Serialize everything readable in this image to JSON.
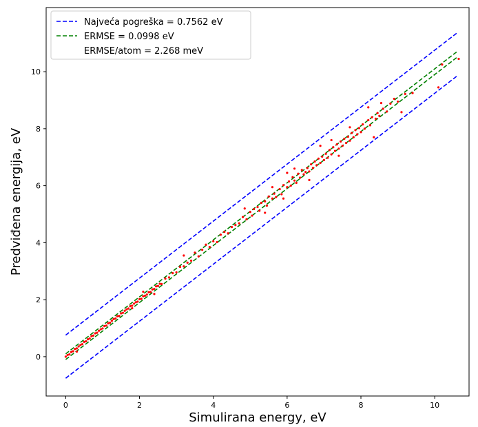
{
  "chart_data": {
    "type": "scatter",
    "title": "",
    "xlabel": "Simulirana energy, eV",
    "ylabel": "Predviđena energija, eV",
    "xlim": [
      -0.53,
      10.93
    ],
    "ylim": [
      -1.38,
      12.25
    ],
    "xticks": [
      0,
      2,
      4,
      6,
      8,
      10
    ],
    "yticks": [
      0,
      2,
      4,
      6,
      8,
      10
    ],
    "grid": false,
    "legend_position": "top-left",
    "lines": [
      {
        "name": "Najveća pogreška = 0.7562 eV",
        "color": "#0000ff",
        "dash": "dashed",
        "x": [
          0,
          10.6
        ],
        "y": [
          0.7562,
          11.3562
        ]
      },
      {
        "name": "ERMSE = 0.0998 eV",
        "color": "#008000",
        "dash": "dashed",
        "x": [
          0,
          10.6
        ],
        "y": [
          0.0998,
          10.6998
        ]
      },
      {
        "name": "",
        "color": "#008000",
        "dash": "dashed",
        "x": [
          0,
          10.6
        ],
        "y": [
          -0.0998,
          10.5002
        ]
      },
      {
        "name": "",
        "color": "#0000ff",
        "dash": "dashed",
        "x": [
          0,
          10.6
        ],
        "y": [
          -0.7562,
          9.8438
        ]
      }
    ],
    "legend_extra": "ERMSE/atom = 2.268 meV",
    "scatter_color": "#ff0000",
    "points": [
      [
        0.0,
        0.0
      ],
      [
        0.05,
        0.06
      ],
      [
        0.1,
        0.08
      ],
      [
        0.15,
        0.16
      ],
      [
        0.2,
        0.19
      ],
      [
        0.25,
        0.27
      ],
      [
        0.3,
        0.29
      ],
      [
        0.35,
        0.36
      ],
      [
        0.4,
        0.41
      ],
      [
        0.45,
        0.44
      ],
      [
        0.5,
        0.52
      ],
      [
        0.55,
        0.54
      ],
      [
        0.6,
        0.61
      ],
      [
        0.65,
        0.64
      ],
      [
        0.7,
        0.72
      ],
      [
        0.75,
        0.74
      ],
      [
        0.8,
        0.82
      ],
      [
        0.85,
        0.84
      ],
      [
        0.9,
        0.91
      ],
      [
        0.95,
        0.96
      ],
      [
        1.0,
        0.99
      ],
      [
        1.05,
        1.07
      ],
      [
        1.1,
        1.09
      ],
      [
        1.15,
        1.17
      ],
      [
        1.2,
        1.19
      ],
      [
        1.25,
        1.26
      ],
      [
        1.3,
        1.32
      ],
      [
        1.35,
        1.34
      ],
      [
        1.4,
        1.42
      ],
      [
        1.45,
        1.43
      ],
      [
        1.5,
        1.52
      ],
      [
        1.55,
        1.54
      ],
      [
        1.6,
        1.61
      ],
      [
        1.65,
        1.66
      ],
      [
        1.7,
        1.69
      ],
      [
        1.75,
        1.77
      ],
      [
        1.8,
        1.79
      ],
      [
        1.85,
        1.86
      ],
      [
        1.9,
        1.91
      ],
      [
        1.95,
        1.93
      ],
      [
        2.0,
        2.02
      ],
      [
        2.05,
        2.03
      ],
      [
        2.1,
        2.12
      ],
      [
        2.15,
        2.14
      ],
      [
        2.2,
        2.18
      ],
      [
        2.25,
        2.26
      ],
      [
        2.3,
        2.27
      ],
      [
        2.35,
        2.36
      ],
      [
        2.4,
        2.38
      ],
      [
        2.45,
        2.47
      ],
      [
        2.5,
        2.48
      ],
      [
        2.55,
        2.56
      ],
      [
        2.6,
        2.55
      ],
      [
        2.7,
        2.74
      ],
      [
        2.8,
        2.78
      ],
      [
        2.9,
        2.93
      ],
      [
        3.0,
        2.96
      ],
      [
        3.1,
        3.15
      ],
      [
        3.2,
        3.17
      ],
      [
        3.3,
        3.3
      ],
      [
        3.4,
        3.37
      ],
      [
        3.5,
        3.65
      ],
      [
        3.6,
        3.52
      ],
      [
        3.7,
        3.75
      ],
      [
        3.8,
        3.93
      ],
      [
        3.9,
        3.85
      ],
      [
        4.0,
        4.05
      ],
      [
        4.1,
        4.02
      ],
      [
        4.2,
        4.28
      ],
      [
        4.3,
        4.38
      ],
      [
        4.4,
        4.33
      ],
      [
        4.5,
        4.55
      ],
      [
        4.6,
        4.62
      ],
      [
        4.7,
        4.68
      ],
      [
        4.8,
        4.9
      ],
      [
        4.9,
        4.82
      ],
      [
        5.0,
        5.08
      ],
      [
        5.05,
        4.95
      ],
      [
        5.1,
        5.18
      ],
      [
        5.2,
        5.25
      ],
      [
        5.25,
        5.12
      ],
      [
        5.3,
        5.4
      ],
      [
        5.4,
        5.45
      ],
      [
        5.45,
        5.3
      ],
      [
        5.5,
        5.62
      ],
      [
        5.6,
        5.55
      ],
      [
        5.65,
        5.72
      ],
      [
        5.7,
        5.6
      ],
      [
        5.8,
        5.88
      ],
      [
        5.85,
        5.7
      ],
      [
        5.9,
        6.02
      ],
      [
        6.0,
        5.95
      ],
      [
        6.05,
        6.15
      ],
      [
        6.1,
        6.0
      ],
      [
        6.15,
        6.3
      ],
      [
        6.2,
        6.18
      ],
      [
        6.25,
        6.1
      ],
      [
        6.3,
        6.42
      ],
      [
        6.35,
        6.28
      ],
      [
        6.4,
        6.55
      ],
      [
        6.45,
        6.4
      ],
      [
        6.5,
        6.48
      ],
      [
        6.55,
        6.62
      ],
      [
        6.6,
        6.5
      ],
      [
        6.65,
        6.75
      ],
      [
        6.7,
        6.62
      ],
      [
        6.75,
        6.85
      ],
      [
        6.8,
        6.72
      ],
      [
        6.85,
        6.95
      ],
      [
        6.9,
        6.8
      ],
      [
        6.95,
        7.02
      ],
      [
        7.0,
        6.9
      ],
      [
        7.05,
        7.12
      ],
      [
        7.1,
        6.98
      ],
      [
        7.15,
        7.25
      ],
      [
        7.2,
        7.1
      ],
      [
        7.25,
        7.35
      ],
      [
        7.3,
        7.22
      ],
      [
        7.35,
        7.45
      ],
      [
        7.4,
        7.3
      ],
      [
        7.45,
        7.55
      ],
      [
        7.5,
        7.4
      ],
      [
        7.55,
        7.65
      ],
      [
        7.6,
        7.5
      ],
      [
        7.65,
        7.72
      ],
      [
        7.7,
        7.58
      ],
      [
        7.75,
        7.85
      ],
      [
        7.8,
        7.7
      ],
      [
        7.85,
        7.95
      ],
      [
        7.9,
        7.8
      ],
      [
        7.95,
        8.02
      ],
      [
        8.0,
        7.88
      ],
      [
        8.05,
        8.15
      ],
      [
        8.1,
        8.0
      ],
      [
        8.2,
        8.3
      ],
      [
        8.25,
        8.12
      ],
      [
        8.3,
        8.4
      ],
      [
        8.4,
        8.35
      ],
      [
        8.45,
        8.55
      ],
      [
        8.5,
        8.45
      ],
      [
        8.6,
        8.7
      ],
      [
        8.7,
        8.6
      ],
      [
        8.8,
        8.88
      ],
      [
        8.9,
        9.05
      ],
      [
        9.0,
        8.95
      ],
      [
        9.1,
        8.58
      ],
      [
        9.2,
        9.22
      ],
      [
        9.4,
        9.25
      ],
      [
        10.1,
        9.45
      ],
      [
        10.2,
        10.25
      ],
      [
        10.65,
        10.45
      ],
      [
        6.2,
        6.6
      ],
      [
        6.9,
        7.4
      ],
      [
        7.2,
        7.6
      ],
      [
        8.35,
        7.7
      ],
      [
        5.6,
        5.95
      ],
      [
        4.85,
        5.2
      ],
      [
        7.7,
        8.05
      ],
      [
        8.2,
        8.75
      ],
      [
        6.6,
        6.2
      ],
      [
        6.0,
        6.45
      ],
      [
        5.4,
        5.05
      ],
      [
        7.4,
        7.05
      ],
      [
        8.55,
        8.9
      ],
      [
        5.9,
        5.55
      ],
      [
        3.2,
        3.55
      ],
      [
        2.1,
        2.28
      ],
      [
        1.8,
        1.7
      ],
      [
        0.3,
        0.18
      ],
      [
        2.4,
        2.2
      ]
    ]
  }
}
